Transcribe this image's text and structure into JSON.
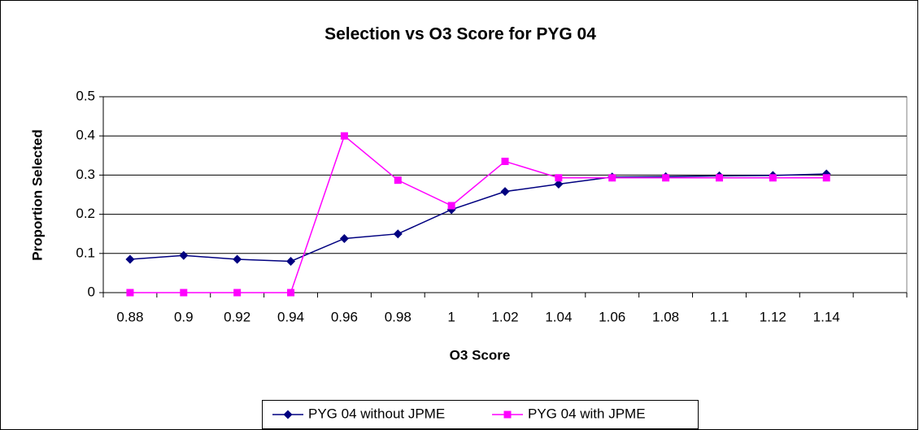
{
  "chart_data": {
    "type": "line",
    "title": "Selection vs O3 Score for PYG 04",
    "x_label": "O3 Score",
    "y_label": "Proportion Selected",
    "categories": [
      "0.88",
      "0.9",
      "0.92",
      "0.94",
      "0.96",
      "0.98",
      "1",
      "1.02",
      "1.04",
      "1.06",
      "1.08",
      "1.1",
      "1.12",
      "1.14",
      null
    ],
    "series": [
      {
        "name": "PYG 04 without JPME",
        "color": "#000080",
        "marker": "diamond",
        "values": [
          0.085,
          0.095,
          0.085,
          0.08,
          0.138,
          0.15,
          0.212,
          0.258,
          0.277,
          0.295,
          0.296,
          0.298,
          0.299,
          0.303,
          null
        ]
      },
      {
        "name": "PYG 04 with JPME",
        "color": "#ff00ff",
        "marker": "square",
        "values": [
          0,
          0,
          0,
          0,
          0.4,
          0.287,
          0.222,
          0.335,
          0.293,
          0.293,
          0.293,
          0.293,
          0.293,
          0.293,
          null
        ]
      }
    ],
    "ylim": [
      0,
      0.5
    ],
    "yticks": [
      0,
      0.1,
      0.2,
      0.3,
      0.4,
      0.5
    ],
    "grid": true,
    "legend": "bottom"
  }
}
